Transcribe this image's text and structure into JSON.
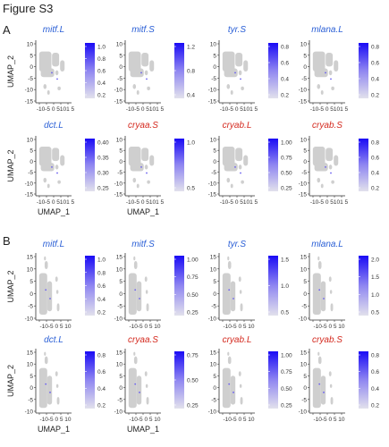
{
  "figure": {
    "title": "Figure S3",
    "axis_x": "UMAP_1",
    "axis_y": "UMAP_2"
  },
  "colors": {
    "blue_gene": "#2a5fd6",
    "red_gene": "#d42a1f",
    "high": "#1a0bf5",
    "low": "#e2e1ec",
    "cell": "#cfcfcf"
  },
  "panels": [
    {
      "letter": "A",
      "xticks_top": [
        "",
        "",
        "",
        ""
      ],
      "xticks": "-10-5  0  5101 5",
      "yticks": [
        "10",
        "5",
        "0",
        "-5",
        "-10",
        "-15"
      ],
      "plots": [
        {
          "gene": "mitf.L",
          "color": "blue",
          "legend": [
            "1.0",
            "0.8",
            "0.6",
            "0.4",
            "0.2"
          ]
        },
        {
          "gene": "mitf.S",
          "color": "blue",
          "legend": [
            "1.2",
            "0.8",
            "0.4"
          ]
        },
        {
          "gene": "tyr.S",
          "color": "blue",
          "legend": [
            "0.8",
            "0.6",
            "0.4",
            "0.2"
          ]
        },
        {
          "gene": "mlana.L",
          "color": "blue",
          "legend": [
            "0.8",
            "0.6",
            "0.4",
            "0.2"
          ]
        },
        {
          "gene": "dct.L",
          "color": "blue",
          "legend": [
            "0.40",
            "0.35",
            "0.30",
            "0.25"
          ]
        },
        {
          "gene": "cryaa.S",
          "color": "red",
          "legend": [
            "1.0",
            "0.5"
          ]
        },
        {
          "gene": "cryab.L",
          "color": "red",
          "legend": [
            "1.00",
            "0.75",
            "0.50",
            "0.25"
          ]
        },
        {
          "gene": "cryab.S",
          "color": "red",
          "legend": [
            "0.8",
            "0.6",
            "0.4",
            "0.2"
          ]
        }
      ]
    },
    {
      "letter": "B",
      "xticks": "-10-5  0  5 10",
      "yticks": [
        "15",
        "10",
        "5",
        "0",
        "-5",
        "-10"
      ],
      "plots": [
        {
          "gene": "mitf.L",
          "color": "blue",
          "legend": [
            "1.0",
            "0.8",
            "0.6",
            "0.4",
            "0.2"
          ]
        },
        {
          "gene": "mitf.S",
          "color": "blue",
          "legend": [
            "1.00",
            "0.75",
            "0.50",
            "0.25"
          ]
        },
        {
          "gene": "tyr.S",
          "color": "blue",
          "legend": [
            "1.5",
            "1.0",
            "0.5"
          ]
        },
        {
          "gene": "mlana.L",
          "color": "blue",
          "legend": [
            "2.0",
            "1.5",
            "1.0",
            "0.5"
          ]
        },
        {
          "gene": "dct.L",
          "color": "blue",
          "legend": [
            "0.8",
            "0.6",
            "0.4",
            "0.2"
          ]
        },
        {
          "gene": "cryaa.S",
          "color": "red",
          "legend": [
            "0.75",
            "0.50",
            "0.25"
          ]
        },
        {
          "gene": "cryab.L",
          "color": "red",
          "legend": [
            "1.00",
            "0.75",
            "0.50",
            "0.25"
          ]
        },
        {
          "gene": "cryab.S",
          "color": "red",
          "legend": [
            "0.8",
            "0.6",
            "0.4",
            "0.2"
          ]
        }
      ]
    }
  ]
}
